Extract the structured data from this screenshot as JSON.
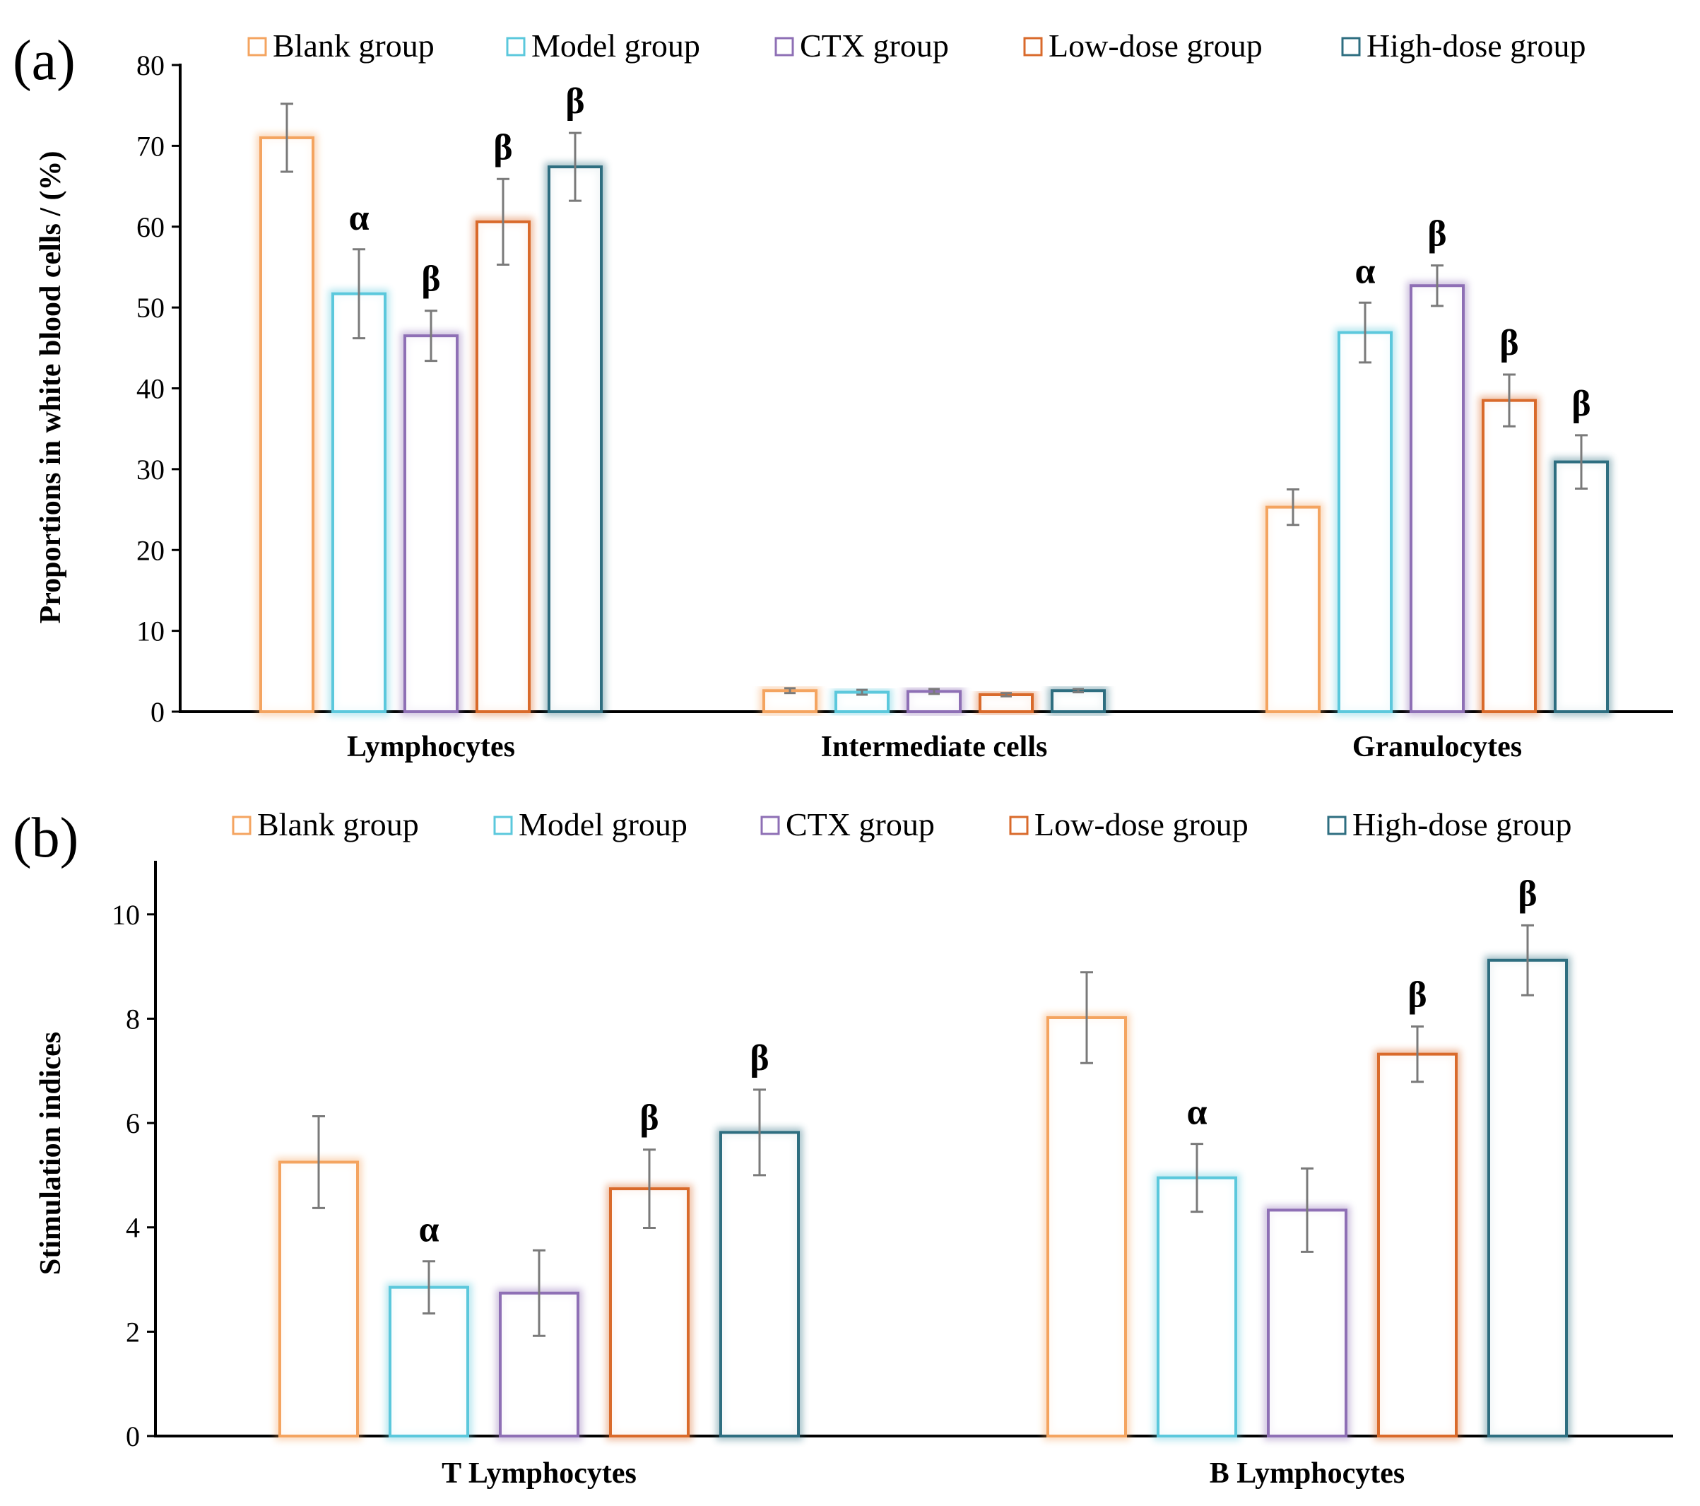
{
  "chart_data": [
    {
      "panel_label": "(a)",
      "type": "bar",
      "categories": [
        "Lymphocytes",
        "Intermediate cells",
        "Granulocytes"
      ],
      "ylabel": "Proportions in white blood cells / (%)",
      "xlabel": "",
      "ylim": [
        0,
        80
      ],
      "yticks": [
        0,
        10,
        20,
        30,
        40,
        50,
        60,
        70,
        80
      ],
      "legend_position": "top",
      "series": [
        {
          "name": "Blank group",
          "color": "#f4a460",
          "values": [
            71,
            2.6,
            25.3
          ],
          "errors": [
            4.2,
            0.3,
            2.2
          ],
          "annotations": [
            "",
            "",
            ""
          ]
        },
        {
          "name": "Model group",
          "color": "#5bc8dc",
          "values": [
            51.7,
            2.4,
            46.9
          ],
          "errors": [
            5.5,
            0.3,
            3.7
          ],
          "annotations": [
            "α",
            "",
            "α"
          ]
        },
        {
          "name": "CTX group",
          "color": "#8e6fb5",
          "values": [
            46.5,
            2.5,
            52.7
          ],
          "errors": [
            3.1,
            0.3,
            2.5
          ],
          "annotations": [
            "β",
            "",
            "β"
          ]
        },
        {
          "name": "Low-dose group",
          "color": "#d96a2b",
          "values": [
            60.6,
            2.1,
            38.5
          ],
          "errors": [
            5.3,
            0.2,
            3.2
          ],
          "annotations": [
            "β",
            "",
            "β"
          ]
        },
        {
          "name": "High-dose group",
          "color": "#2e6e80",
          "values": [
            67.4,
            2.6,
            30.9
          ],
          "errors": [
            4.2,
            0.2,
            3.3
          ],
          "annotations": [
            "β",
            "",
            "β"
          ]
        }
      ]
    },
    {
      "panel_label": "(b)",
      "type": "bar",
      "categories": [
        "T Lymphocytes",
        "B Lymphocytes"
      ],
      "ylabel": "Stimulation indices",
      "xlabel": "",
      "ylim": [
        0,
        11
      ],
      "yticks": [
        0,
        2,
        4,
        6,
        8,
        10
      ],
      "legend_position": "top",
      "series": [
        {
          "name": "Blank group",
          "color": "#f4a460",
          "values": [
            5.25,
            8.02
          ],
          "errors": [
            0.88,
            0.87
          ],
          "annotations": [
            "",
            ""
          ]
        },
        {
          "name": "Model group",
          "color": "#5bc8dc",
          "values": [
            2.85,
            4.95
          ],
          "errors": [
            0.5,
            0.65
          ],
          "annotations": [
            "α",
            "α"
          ]
        },
        {
          "name": "CTX group",
          "color": "#8e6fb5",
          "values": [
            2.74,
            4.33
          ],
          "errors": [
            0.82,
            0.8
          ],
          "annotations": [
            "",
            ""
          ]
        },
        {
          "name": "Low-dose group",
          "color": "#d96a2b",
          "values": [
            4.74,
            7.32
          ],
          "errors": [
            0.75,
            0.53
          ],
          "annotations": [
            "β",
            "β"
          ]
        },
        {
          "name": "High-dose group",
          "color": "#2e6e80",
          "values": [
            5.82,
            9.12
          ],
          "errors": [
            0.82,
            0.67
          ],
          "annotations": [
            "β",
            "β"
          ]
        }
      ]
    }
  ]
}
